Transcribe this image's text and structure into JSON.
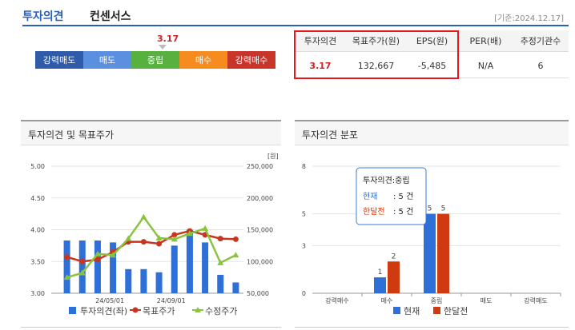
{
  "header": {
    "title": "투자의견",
    "subtitle": "컨센서스",
    "date": "[기준:2024.12.17]"
  },
  "opinion": {
    "score": "3.17",
    "score_value": 3.17,
    "scale": [
      {
        "label": "강력매도",
        "color": "#2f5ba8"
      },
      {
        "label": "매도",
        "color": "#5b8fe0"
      },
      {
        "label": "중립",
        "color": "#58b03f"
      },
      {
        "label": "매수",
        "color": "#f68b1f"
      },
      {
        "label": "강력매수",
        "color": "#c8352b"
      }
    ]
  },
  "stats": {
    "headers": [
      "투자의견",
      "목표주가(원)",
      "EPS(원)",
      "PER(배)",
      "추정기관수"
    ],
    "values": [
      "3.17",
      "132,667",
      "-5,485",
      "N/A",
      "6"
    ]
  },
  "panels": {
    "left_title": "투자의견 및 목표주가",
    "right_title": "투자의견 분포"
  },
  "chart_data": [
    {
      "type": "bar",
      "title": "투자의견 및 목표주가",
      "left_axis": {
        "ticks": [
          "5.00",
          "4.50",
          "4.00",
          "3.50",
          "3.00"
        ],
        "range": [
          3.0,
          5.0
        ]
      },
      "right_axis": {
        "unit": "[원]",
        "ticks": [
          "250,000",
          "200,000",
          "150,000",
          "100,000",
          "50,000"
        ],
        "range": [
          50000,
          250000
        ]
      },
      "x_ticks": [
        "24/05/01",
        "24/09/01"
      ],
      "series": [
        {
          "name": "투자의견(좌)",
          "type": "bar",
          "axis": "left",
          "color": "#2e6fd8",
          "values": [
            3.83,
            3.83,
            3.83,
            3.8,
            3.38,
            3.38,
            3.33,
            3.75,
            4.0,
            3.8,
            3.29,
            3.17
          ]
        },
        {
          "name": "목표주가",
          "type": "line",
          "axis": "right",
          "color": "#c9361f",
          "values": [
            107000,
            100000,
            103000,
            115000,
            131000,
            131000,
            128000,
            142000,
            148000,
            142000,
            136000,
            135000
          ]
        },
        {
          "name": "수정주가",
          "type": "line",
          "axis": "right",
          "color": "#8ac43f",
          "values": [
            75000,
            82000,
            112000,
            110000,
            136000,
            170000,
            137000,
            135000,
            144000,
            152000,
            98000,
            110000
          ]
        }
      ]
    },
    {
      "type": "bar",
      "title": "투자의견 분포",
      "categories": [
        "강력매수",
        "매수",
        "중립",
        "매도",
        "강력매도"
      ],
      "ylim": [
        0,
        8
      ],
      "y_ticks": [
        "8",
        "5",
        "3",
        "0"
      ],
      "series": [
        {
          "name": "현재",
          "color": "#2e6fd8",
          "values": [
            0,
            1,
            5,
            0,
            0
          ]
        },
        {
          "name": "한달전",
          "color": "#d03a10",
          "values": [
            0,
            2,
            5,
            0,
            0
          ]
        }
      ],
      "tooltip": {
        "title": "투자의견:중립",
        "rows": [
          {
            "label": "현재",
            "value": ": 5 건"
          },
          {
            "label": "한달전",
            "value": ": 5 건"
          }
        ]
      }
    }
  ]
}
